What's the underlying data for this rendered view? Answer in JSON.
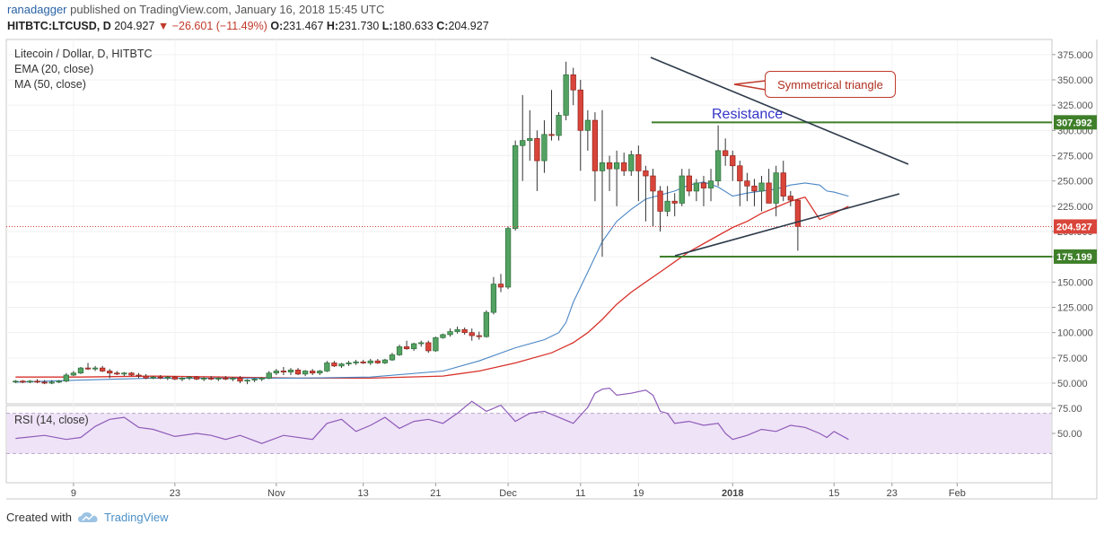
{
  "header": {
    "author": "ranadagger",
    "published": "published on TradingView.com, January 16, 2018 15:45 UTC",
    "symbol": "HITBTC:LTCUSD, D",
    "last": "204.927",
    "change": "−26.601 (−11.49%)",
    "o_label": "O:",
    "o": "231.467",
    "h_label": "H:",
    "h": "231.730",
    "l_label": "L:",
    "l": "180.633",
    "c_label": "C:",
    "c": "204.927"
  },
  "legend": {
    "title": "Litecoin / Dollar, D, HITBTC",
    "ema": "EMA (20, close)",
    "ma": "MA (50, close)",
    "rsi": "RSI (14, close)"
  },
  "annotations": {
    "callout": "Symmetrical triangle",
    "resistance": "Resistance",
    "resistance_level": "307.992",
    "support_level": "175.199",
    "last_price": "204.927"
  },
  "footer": {
    "created_with": "Created with",
    "brand": "TradingView"
  },
  "colors": {
    "up": "#53a262",
    "down": "#d9453a",
    "ema": "#4a86c5",
    "ma": "#d8322b",
    "rsi": "#8e5bb8",
    "hline": "#3f7f2a",
    "triangle": "#2d3a4a"
  },
  "chart_data": {
    "type": "candlestick",
    "price_axis": [
      375,
      350,
      325,
      300,
      275,
      250,
      225,
      200,
      175,
      150,
      125,
      100,
      75,
      50
    ],
    "rsi_axis": [
      75,
      50
    ],
    "x_ticks": [
      {
        "day": 9,
        "label": "9"
      },
      {
        "day": 23,
        "label": "23"
      },
      {
        "day": 37,
        "label": "Nov"
      },
      {
        "day": 49,
        "label": "13"
      },
      {
        "day": 59,
        "label": "21"
      },
      {
        "day": 69,
        "label": "Dec"
      },
      {
        "day": 79,
        "label": "11"
      },
      {
        "day": 87,
        "label": "19"
      },
      {
        "day": 100,
        "label": "2018"
      },
      {
        "day": 114,
        "label": "15"
      },
      {
        "day": 122,
        "label": "23"
      },
      {
        "day": 131,
        "label": "Feb"
      }
    ],
    "candles": [
      [
        52,
        53,
        50,
        52
      ],
      [
        52,
        53,
        50,
        51
      ],
      [
        51,
        53,
        50,
        52
      ],
      [
        52,
        54,
        50,
        51
      ],
      [
        51,
        53,
        49,
        50
      ],
      [
        50,
        53,
        49,
        51
      ],
      [
        51,
        53,
        50,
        52
      ],
      [
        52,
        60,
        51,
        58
      ],
      [
        58,
        62,
        57,
        60
      ],
      [
        60,
        66,
        59,
        65
      ],
      [
        65,
        70,
        63,
        64
      ],
      [
        64,
        67,
        62,
        65
      ],
      [
        65,
        67,
        61,
        62
      ],
      [
        62,
        64,
        55,
        60
      ],
      [
        60,
        62,
        58,
        59
      ],
      [
        59,
        61,
        57,
        60
      ],
      [
        60,
        61,
        57,
        58
      ],
      [
        58,
        60,
        55,
        57
      ],
      [
        57,
        59,
        54,
        55
      ],
      [
        55,
        57,
        54,
        56
      ],
      [
        56,
        58,
        54,
        55
      ],
      [
        55,
        57,
        53,
        56
      ],
      [
        56,
        57,
        53,
        54
      ],
      [
        54,
        56,
        52,
        55
      ],
      [
        55,
        57,
        53,
        56
      ],
      [
        56,
        57,
        53,
        54
      ],
      [
        54,
        56,
        52,
        55
      ],
      [
        55,
        57,
        53,
        54
      ],
      [
        54,
        56,
        52,
        55
      ],
      [
        55,
        57,
        53,
        54
      ],
      [
        54,
        56,
        52,
        55
      ],
      [
        55,
        57,
        50,
        52
      ],
      [
        52,
        54,
        49,
        53
      ],
      [
        53,
        55,
        51,
        54
      ],
      [
        54,
        56,
        52,
        55
      ],
      [
        55,
        62,
        54,
        60
      ],
      [
        60,
        64,
        58,
        62
      ],
      [
        62,
        66,
        58,
        61
      ],
      [
        61,
        65,
        58,
        63
      ],
      [
        63,
        65,
        58,
        59
      ],
      [
        59,
        63,
        57,
        62
      ],
      [
        62,
        64,
        58,
        60
      ],
      [
        60,
        63,
        58,
        62
      ],
      [
        62,
        72,
        61,
        70
      ],
      [
        70,
        72,
        66,
        67
      ],
      [
        67,
        70,
        65,
        69
      ],
      [
        69,
        72,
        67,
        70
      ],
      [
        70,
        73,
        68,
        71
      ],
      [
        71,
        73,
        69,
        70
      ],
      [
        70,
        74,
        68,
        72
      ],
      [
        72,
        74,
        69,
        70
      ],
      [
        70,
        74,
        69,
        73
      ],
      [
        73,
        80,
        72,
        78
      ],
      [
        78,
        88,
        77,
        86
      ],
      [
        86,
        92,
        83,
        84
      ],
      [
        84,
        90,
        82,
        89
      ],
      [
        89,
        92,
        86,
        90
      ],
      [
        90,
        92,
        80,
        82
      ],
      [
        82,
        96,
        81,
        95
      ],
      [
        95,
        99,
        94,
        98
      ],
      [
        98,
        104,
        96,
        101
      ],
      [
        101,
        106,
        99,
        103
      ],
      [
        103,
        105,
        98,
        100
      ],
      [
        100,
        104,
        92,
        97
      ],
      [
        97,
        101,
        93,
        96
      ],
      [
        96,
        122,
        95,
        120
      ],
      [
        120,
        155,
        118,
        148
      ],
      [
        148,
        158,
        140,
        145
      ],
      [
        145,
        205,
        143,
        203
      ],
      [
        203,
        290,
        201,
        285
      ],
      [
        285,
        335,
        250,
        290
      ],
      [
        290,
        320,
        270,
        292
      ],
      [
        292,
        300,
        240,
        270
      ],
      [
        270,
        310,
        258,
        296
      ],
      [
        296,
        340,
        290,
        295
      ],
      [
        295,
        318,
        290,
        315
      ],
      [
        315,
        368,
        310,
        355
      ],
      [
        355,
        362,
        325,
        340
      ],
      [
        340,
        350,
        260,
        300
      ],
      [
        300,
        320,
        280,
        310
      ],
      [
        310,
        318,
        230,
        260
      ],
      [
        260,
        320,
        175,
        268
      ],
      [
        268,
        275,
        240,
        262
      ],
      [
        262,
        280,
        225,
        268
      ],
      [
        268,
        278,
        255,
        260
      ],
      [
        260,
        280,
        255,
        276
      ],
      [
        276,
        285,
        230,
        260
      ],
      [
        260,
        265,
        210,
        255
      ],
      [
        255,
        262,
        205,
        240
      ],
      [
        240,
        245,
        200,
        220
      ],
      [
        220,
        245,
        215,
        230
      ],
      [
        230,
        238,
        215,
        228
      ],
      [
        228,
        262,
        225,
        255
      ],
      [
        255,
        262,
        235,
        240
      ],
      [
        240,
        252,
        230,
        248
      ],
      [
        248,
        255,
        225,
        243
      ],
      [
        243,
        262,
        230,
        250
      ],
      [
        250,
        305,
        245,
        280
      ],
      [
        280,
        292,
        265,
        275
      ],
      [
        275,
        280,
        250,
        265
      ],
      [
        265,
        270,
        225,
        250
      ],
      [
        250,
        258,
        230,
        245
      ],
      [
        245,
        252,
        225,
        240
      ],
      [
        240,
        255,
        220,
        248
      ],
      [
        248,
        262,
        230,
        228
      ],
      [
        228,
        265,
        215,
        258
      ],
      [
        258,
        270,
        230,
        235
      ],
      [
        235,
        240,
        225,
        231
      ],
      [
        231,
        232,
        181,
        205
      ]
    ],
    "ema20_path": [
      [
        1,
        51
      ],
      [
        10,
        53
      ],
      [
        20,
        55
      ],
      [
        30,
        55
      ],
      [
        40,
        55
      ],
      [
        50,
        56
      ],
      [
        60,
        62
      ],
      [
        65,
        72
      ],
      [
        70,
        85
      ],
      [
        74,
        93
      ],
      [
        76,
        100
      ],
      [
        77,
        110
      ],
      [
        78,
        130
      ],
      [
        80,
        160
      ],
      [
        82,
        190
      ],
      [
        84,
        210
      ],
      [
        86,
        222
      ],
      [
        88,
        232
      ],
      [
        90,
        236
      ],
      [
        92,
        240
      ],
      [
        94,
        246
      ],
      [
        96,
        249
      ],
      [
        98,
        244
      ],
      [
        100,
        235
      ],
      [
        102,
        238
      ],
      [
        104,
        240
      ],
      [
        106,
        242
      ],
      [
        108,
        246
      ],
      [
        110,
        248
      ],
      [
        112,
        246
      ],
      [
        113,
        240
      ],
      [
        114,
        239
      ],
      [
        116,
        235
      ]
    ],
    "ma50_path": [
      [
        1,
        56
      ],
      [
        10,
        56
      ],
      [
        20,
        57
      ],
      [
        30,
        56
      ],
      [
        40,
        55
      ],
      [
        50,
        55
      ],
      [
        60,
        57
      ],
      [
        65,
        62
      ],
      [
        70,
        70
      ],
      [
        75,
        80
      ],
      [
        78,
        90
      ],
      [
        80,
        100
      ],
      [
        82,
        113
      ],
      [
        84,
        128
      ],
      [
        86,
        140
      ],
      [
        88,
        150
      ],
      [
        90,
        160
      ],
      [
        92,
        170
      ],
      [
        94,
        180
      ],
      [
        96,
        188
      ],
      [
        98,
        196
      ],
      [
        100,
        204
      ],
      [
        102,
        210
      ],
      [
        104,
        218
      ],
      [
        106,
        224
      ],
      [
        108,
        230
      ],
      [
        110,
        234
      ],
      [
        112,
        212
      ],
      [
        114,
        218
      ],
      [
        116,
        225
      ]
    ],
    "rsi_path": [
      [
        1,
        45
      ],
      [
        5,
        48
      ],
      [
        8,
        44
      ],
      [
        10,
        46
      ],
      [
        12,
        57
      ],
      [
        14,
        64
      ],
      [
        16,
        66
      ],
      [
        18,
        56
      ],
      [
        20,
        54
      ],
      [
        23,
        47
      ],
      [
        26,
        50
      ],
      [
        28,
        48
      ],
      [
        30,
        44
      ],
      [
        32,
        48
      ],
      [
        35,
        40
      ],
      [
        38,
        48
      ],
      [
        42,
        44
      ],
      [
        44,
        60
      ],
      [
        46,
        64
      ],
      [
        48,
        52
      ],
      [
        50,
        58
      ],
      [
        52,
        66
      ],
      [
        54,
        55
      ],
      [
        56,
        62
      ],
      [
        58,
        64
      ],
      [
        60,
        60
      ],
      [
        62,
        70
      ],
      [
        64,
        82
      ],
      [
        66,
        72
      ],
      [
        68,
        78
      ],
      [
        70,
        62
      ],
      [
        72,
        70
      ],
      [
        74,
        72
      ],
      [
        76,
        66
      ],
      [
        78,
        60
      ],
      [
        80,
        76
      ],
      [
        81,
        90
      ],
      [
        82,
        94
      ],
      [
        83,
        95
      ],
      [
        84,
        88
      ],
      [
        86,
        90
      ],
      [
        88,
        93
      ],
      [
        89,
        88
      ],
      [
        90,
        72
      ],
      [
        91,
        70
      ],
      [
        92,
        60
      ],
      [
        94,
        62
      ],
      [
        96,
        58
      ],
      [
        98,
        60
      ],
      [
        99,
        50
      ],
      [
        100,
        44
      ],
      [
        102,
        48
      ],
      [
        104,
        54
      ],
      [
        106,
        52
      ],
      [
        108,
        58
      ],
      [
        110,
        56
      ],
      [
        112,
        50
      ],
      [
        113,
        46
      ],
      [
        114,
        52
      ],
      [
        116,
        44
      ]
    ]
  }
}
